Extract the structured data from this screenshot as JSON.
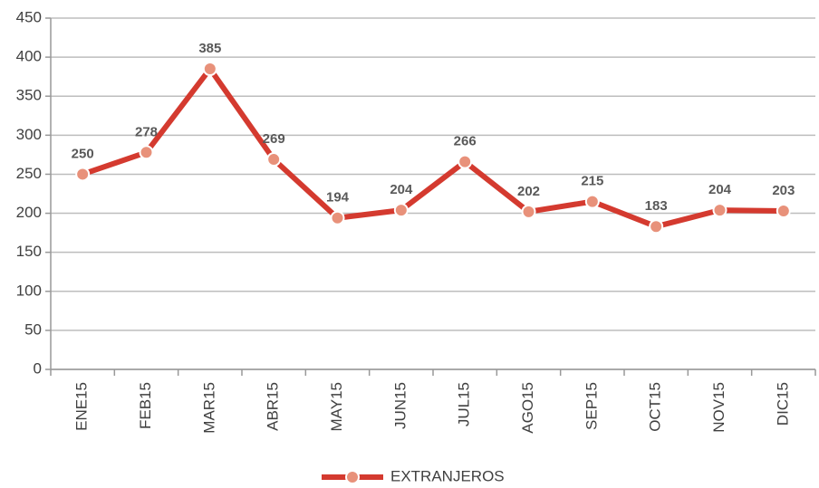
{
  "chart_data": {
    "type": "line",
    "categories": [
      "ENE15",
      "FEB15",
      "MAR15",
      "ABR15",
      "MAY15",
      "JUN15",
      "JUL15",
      "AGO15",
      "SEP15",
      "OCT15",
      "NOV15",
      "DIC15"
    ],
    "series": [
      {
        "name": "EXTRANJEROS",
        "color": "#d43a2f",
        "marker_color": "#e8917a",
        "values": [
          250,
          278,
          385,
          269,
          194,
          204,
          266,
          202,
          215,
          183,
          204,
          203
        ]
      }
    ],
    "ylim": [
      0,
      450
    ],
    "yticks": [
      0,
      50,
      100,
      150,
      200,
      250,
      300,
      350,
      400,
      450
    ],
    "grid": true,
    "legend": "bottom"
  }
}
